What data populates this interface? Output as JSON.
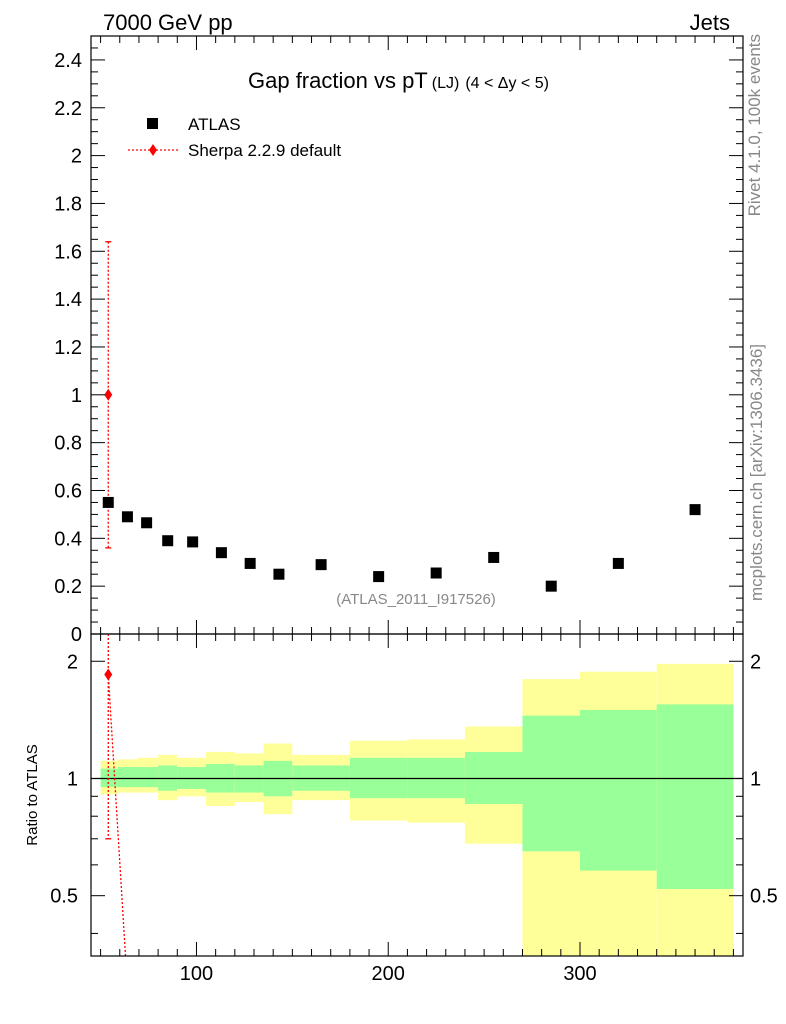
{
  "header": {
    "left": "7000 GeV pp",
    "right": "Jets"
  },
  "side": {
    "rivet": "Rivet 4.1.0,  100k events",
    "mcplots": "mcplots.cern.ch [arXiv:1306.3436]"
  },
  "colors": {
    "data": "#000000",
    "mc": "#ff0000",
    "band_inner": "#99ff99",
    "band_outer": "#ffff99"
  },
  "chart_data": {
    "type": "scatter",
    "title": {
      "main": "Gap fraction vs pT",
      "sub": "(LJ)",
      "range": "(4 < Δy < 5)"
    },
    "watermark": "(ATLAS_2011_I917526)",
    "xlabel": "",
    "ylabel": "",
    "xlim": [
      45,
      385
    ],
    "ylim": [
      0,
      2.5
    ],
    "x_ticks": [
      "100",
      "200",
      "300"
    ],
    "y_ticks": [
      "0",
      "0.2",
      "0.4",
      "0.6",
      "0.8",
      "1",
      "1.2",
      "1.4",
      "1.6",
      "1.8",
      "2",
      "2.2",
      "2.4"
    ],
    "legend": {
      "placement": "top-left",
      "entries": [
        "ATLAS",
        "Sherpa 2.2.9 default"
      ]
    },
    "series": [
      {
        "name": "ATLAS",
        "marker": "square",
        "points": [
          {
            "x": 54,
            "y": 0.55
          },
          {
            "x": 64,
            "y": 0.49
          },
          {
            "x": 74,
            "y": 0.465
          },
          {
            "x": 85,
            "y": 0.39
          },
          {
            "x": 98,
            "y": 0.385
          },
          {
            "x": 113,
            "y": 0.34
          },
          {
            "x": 128,
            "y": 0.295
          },
          {
            "x": 143,
            "y": 0.25
          },
          {
            "x": 165,
            "y": 0.29
          },
          {
            "x": 195,
            "y": 0.24
          },
          {
            "x": 225,
            "y": 0.255
          },
          {
            "x": 255,
            "y": 0.32
          },
          {
            "x": 285,
            "y": 0.2
          },
          {
            "x": 320,
            "y": 0.295
          },
          {
            "x": 360,
            "y": 0.52
          }
        ]
      },
      {
        "name": "Sherpa 2.2.9 default",
        "marker": "diamond",
        "points": [
          {
            "x": 54,
            "y": 1.0,
            "ylo": 0.36,
            "yhi": 1.64
          }
        ]
      }
    ],
    "ratio": {
      "ylabel": "Ratio to ATLAS",
      "ylim": [
        0.35,
        2.35
      ],
      "scale": "log",
      "y_ticks": [
        "0.5",
        "1",
        "2"
      ],
      "mc_point": {
        "x": 54,
        "y": 1.85,
        "ylo": 0.7,
        "yhi": 2.4
      },
      "mc_line_end": {
        "x": 63,
        "y": 0.35
      },
      "bands": [
        {
          "x0": 50,
          "x1": 59,
          "in_lo": 0.95,
          "in_hi": 1.06,
          "out_lo": 0.91,
          "out_hi": 1.11
        },
        {
          "x0": 59,
          "x1": 69,
          "in_lo": 0.95,
          "in_hi": 1.07,
          "out_lo": 0.92,
          "out_hi": 1.12
        },
        {
          "x0": 69,
          "x1": 80,
          "in_lo": 0.95,
          "in_hi": 1.07,
          "out_lo": 0.92,
          "out_hi": 1.13
        },
        {
          "x0": 80,
          "x1": 90,
          "in_lo": 0.93,
          "in_hi": 1.08,
          "out_lo": 0.88,
          "out_hi": 1.15
        },
        {
          "x0": 90,
          "x1": 105,
          "in_lo": 0.94,
          "in_hi": 1.07,
          "out_lo": 0.9,
          "out_hi": 1.13
        },
        {
          "x0": 105,
          "x1": 120,
          "in_lo": 0.92,
          "in_hi": 1.09,
          "out_lo": 0.85,
          "out_hi": 1.17
        },
        {
          "x0": 120,
          "x1": 135,
          "in_lo": 0.92,
          "in_hi": 1.08,
          "out_lo": 0.87,
          "out_hi": 1.16
        },
        {
          "x0": 135,
          "x1": 150,
          "in_lo": 0.9,
          "in_hi": 1.11,
          "out_lo": 0.81,
          "out_hi": 1.23
        },
        {
          "x0": 150,
          "x1": 180,
          "in_lo": 0.93,
          "in_hi": 1.08,
          "out_lo": 0.88,
          "out_hi": 1.15
        },
        {
          "x0": 180,
          "x1": 210,
          "in_lo": 0.89,
          "in_hi": 1.13,
          "out_lo": 0.78,
          "out_hi": 1.25
        },
        {
          "x0": 210,
          "x1": 240,
          "in_lo": 0.89,
          "in_hi": 1.13,
          "out_lo": 0.77,
          "out_hi": 1.26
        },
        {
          "x0": 240,
          "x1": 270,
          "in_lo": 0.86,
          "in_hi": 1.17,
          "out_lo": 0.68,
          "out_hi": 1.36
        },
        {
          "x0": 270,
          "x1": 300,
          "in_lo": 0.65,
          "in_hi": 1.45,
          "out_lo": 0.35,
          "out_hi": 1.8
        },
        {
          "x0": 300,
          "x1": 340,
          "in_lo": 0.58,
          "in_hi": 1.5,
          "out_lo": 0.35,
          "out_hi": 1.88
        },
        {
          "x0": 340,
          "x1": 380,
          "in_lo": 0.52,
          "in_hi": 1.55,
          "out_lo": 0.35,
          "out_hi": 1.97
        }
      ]
    }
  }
}
